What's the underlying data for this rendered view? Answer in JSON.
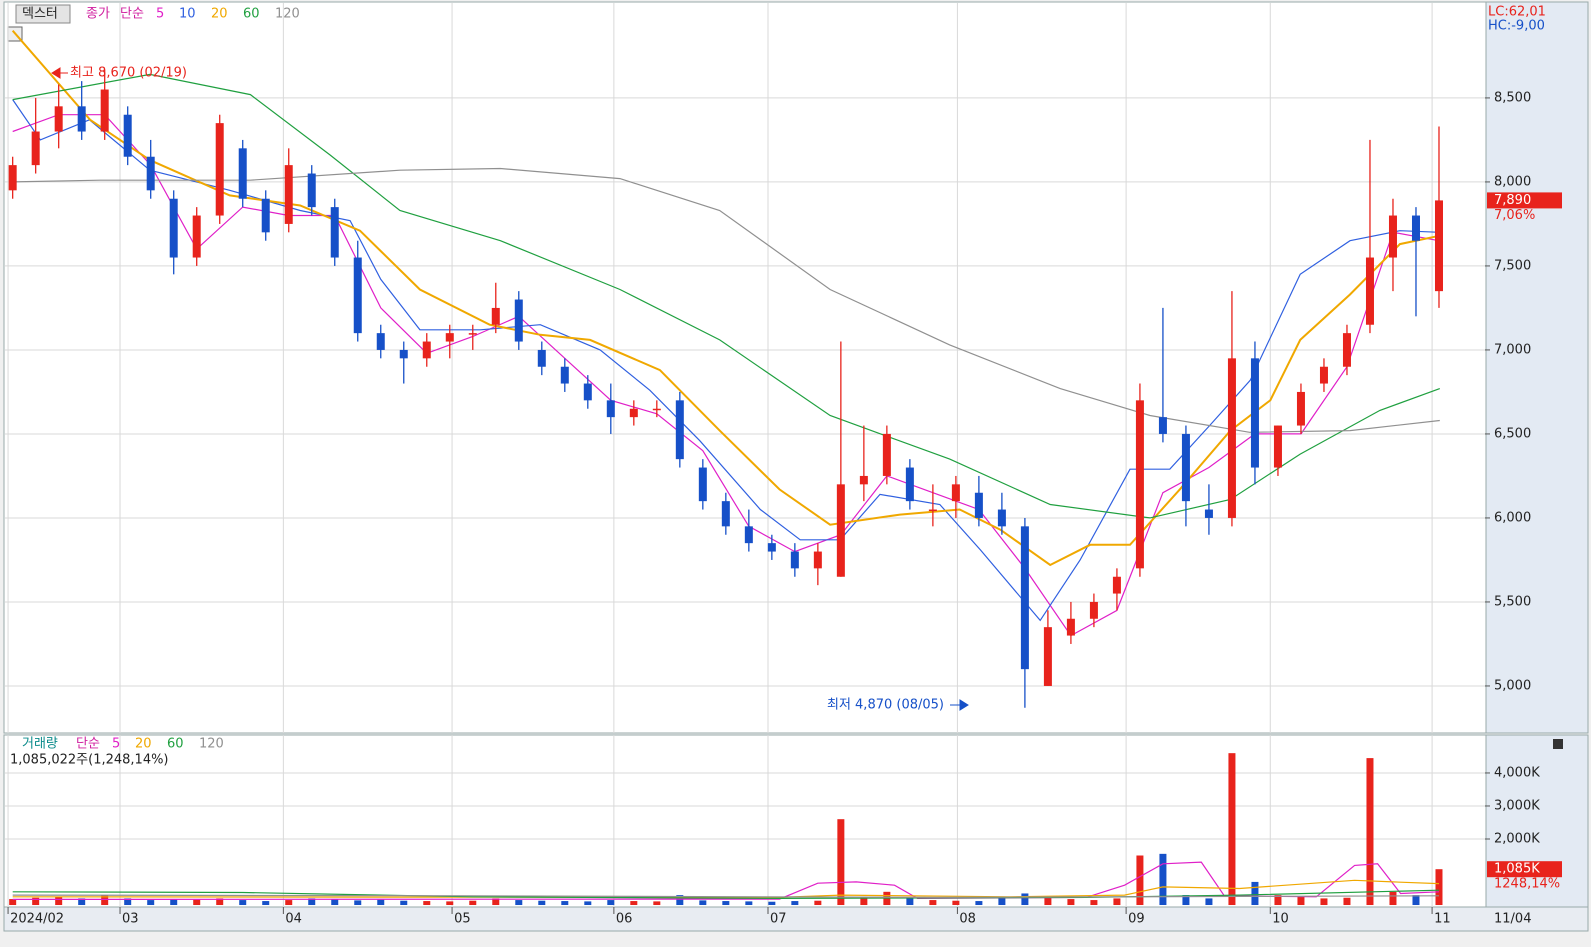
{
  "chart_data": [
    {
      "type": "candlestick",
      "title": "덱스터",
      "price_label": "종가",
      "ma_label": "단순",
      "corner_labels": [
        "LC:62,01",
        "HC:-9,00"
      ],
      "annotations": [
        "최고 8,670 (02/19)",
        "최저 4,870 (08/05)"
      ],
      "last_price_label": "7,890",
      "change_label": "7,06%",
      "xlim": [
        -1,
        192
      ],
      "ylim": [
        4720,
        9065
      ],
      "yticks": [
        {
          "value": 5000,
          "label": "5,000"
        },
        {
          "value": 5500,
          "label": "5,500"
        },
        {
          "value": 6000,
          "label": "6,000"
        },
        {
          "value": 6500,
          "label": "6,500"
        },
        {
          "value": 7000,
          "label": "7,000"
        },
        {
          "value": 7500,
          "label": "7,500"
        },
        {
          "value": 8000,
          "label": "8,000"
        },
        {
          "value": 8500,
          "label": "8,500"
        }
      ],
      "grid": true,
      "up_color": "#e8231c",
      "down_color": "#1650c8",
      "x": [
        0,
        3,
        6,
        9,
        12,
        15,
        18,
        21,
        24,
        27,
        30,
        33,
        36,
        39,
        42,
        45,
        48,
        51,
        54,
        57,
        60,
        63,
        66,
        69,
        72,
        75,
        78,
        81,
        84,
        87,
        90,
        93,
        96,
        99,
        102,
        105,
        108,
        111,
        114,
        117,
        120,
        123,
        126,
        129,
        132,
        135,
        138,
        141,
        144,
        147,
        150,
        153,
        156,
        159,
        162,
        165,
        168,
        171,
        174,
        177,
        180,
        183,
        186
      ],
      "open": [
        7950,
        8100,
        8300,
        8450,
        8300,
        8400,
        8150,
        7900,
        7550,
        7800,
        8200,
        7900,
        7750,
        8050,
        7850,
        7550,
        7100,
        7000,
        6950,
        7050,
        7100,
        7150,
        7300,
        7000,
        6900,
        6800,
        6700,
        6600,
        6650,
        6700,
        6300,
        6100,
        5950,
        5850,
        5800,
        5700,
        5650,
        6200,
        6250,
        6300,
        6050,
        6100,
        6150,
        6050,
        5950,
        5000,
        5300,
        5400,
        5550,
        5700,
        6600,
        6500,
        6050,
        6000,
        6950,
        6300,
        6550,
        6800,
        6900,
        7150,
        7550,
        7800,
        7350
      ],
      "high": [
        8150,
        8500,
        8580,
        8600,
        8670,
        8450,
        8250,
        7950,
        7850,
        8400,
        8250,
        7950,
        8200,
        8100,
        7900,
        7650,
        7150,
        7050,
        7100,
        7150,
        7150,
        7400,
        7350,
        7050,
        6950,
        6850,
        6800,
        6700,
        6700,
        6750,
        6350,
        6150,
        6050,
        5900,
        5850,
        5850,
        7050,
        6550,
        6550,
        6350,
        6200,
        6250,
        6250,
        6150,
        6000,
        5450,
        5500,
        5550,
        5700,
        6800,
        7250,
        6550,
        6200,
        7350,
        7050,
        6550,
        6800,
        6950,
        7150,
        8250,
        7900,
        7850,
        8330
      ],
      "low": [
        7900,
        8050,
        8200,
        8250,
        8250,
        8100,
        7900,
        7450,
        7500,
        7750,
        7850,
        7650,
        7700,
        7800,
        7500,
        7050,
        6950,
        6800,
        6900,
        6950,
        7000,
        7100,
        7000,
        6850,
        6750,
        6650,
        6500,
        6550,
        6600,
        6300,
        6050,
        5900,
        5800,
        5750,
        5650,
        5600,
        5650,
        6100,
        6200,
        6050,
        5950,
        6000,
        5950,
        5900,
        4870,
        5000,
        5250,
        5350,
        5450,
        5650,
        6450,
        5950,
        5900,
        5950,
        6200,
        6250,
        6500,
        6750,
        6850,
        7100,
        7350,
        7200,
        7250
      ],
      "close": [
        8100,
        8300,
        8450,
        8300,
        8550,
        8150,
        7950,
        7550,
        7800,
        8350,
        7900,
        7700,
        8100,
        7850,
        7550,
        7100,
        7000,
        6950,
        7050,
        7100,
        7100,
        7250,
        7050,
        6900,
        6800,
        6700,
        6600,
        6650,
        6650,
        6350,
        6100,
        5950,
        5850,
        5800,
        5700,
        5800,
        6200,
        6250,
        6500,
        6100,
        6050,
        6200,
        6000,
        5950,
        5100,
        5350,
        5400,
        5500,
        5650,
        6700,
        6500,
        6100,
        6000,
        6950,
        6300,
        6550,
        6750,
        6900,
        7100,
        7550,
        7800,
        7650,
        7890
      ],
      "series": [
        {
          "name": "5",
          "color": "#e020c8",
          "x": [
            0,
            6,
            12,
            18,
            24,
            30,
            36,
            42,
            48,
            54,
            60,
            66,
            72,
            78,
            84,
            90,
            96,
            102,
            108,
            114,
            120,
            126,
            132,
            138,
            144,
            150,
            156,
            162,
            168,
            174,
            180,
            186
          ],
          "values": [
            8300,
            8400,
            8400,
            8100,
            7600,
            7850,
            7800,
            7800,
            7250,
            6980,
            7080,
            7200,
            6950,
            6700,
            6620,
            6400,
            5950,
            5800,
            5900,
            6250,
            6150,
            6050,
            5700,
            5300,
            5450,
            6150,
            6300,
            6500,
            6500,
            6900,
            7700,
            7650
          ]
        },
        {
          "name": "10",
          "color": "#3060e0",
          "x": [
            0,
            3.6,
            10,
            17.9,
            28.3,
            37.5,
            44,
            48,
            53.1,
            61,
            68.8,
            76.6,
            83.1,
            89.6,
            97.5,
            102.7,
            107.9,
            113.1,
            120.9,
            126.2,
            134,
            139.2,
            145.7,
            150.9,
            156.1,
            161.4,
            167.9,
            174.4,
            180.9,
            186.1
          ],
          "values": [
            8490,
            8250,
            8370,
            8070,
            7950,
            7830,
            7770,
            7420,
            7120,
            7120,
            7150,
            7000,
            6760,
            6460,
            6050,
            5870,
            5870,
            6140,
            6080,
            5810,
            5390,
            5750,
            6290,
            6290,
            6550,
            6820,
            7450,
            7650,
            7710,
            7700
          ]
        },
        {
          "name": "20",
          "color": "#f0a800",
          "x": [
            0,
            10.1,
            17.9,
            28.3,
            37.5,
            45.3,
            53.1,
            62.2,
            68.8,
            75.3,
            84.4,
            92.2,
            100,
            106.6,
            115.7,
            123.5,
            128.8,
            135.3,
            140.5,
            145.7,
            152.2,
            158.8,
            164,
            167.9,
            174.4,
            180.9,
            186.1
          ],
          "values": [
            8900,
            8370,
            8130,
            7920,
            7860,
            7710,
            7360,
            7150,
            7090,
            7060,
            6880,
            6520,
            6170,
            5960,
            6020,
            6050,
            5930,
            5720,
            5840,
            5840,
            6170,
            6520,
            6700,
            7060,
            7330,
            7630,
            7680
          ]
        },
        {
          "name": "60",
          "color": "#20a040",
          "x": [
            0,
            17.9,
            31,
            41.4,
            50.5,
            63.6,
            79.2,
            92.2,
            106.6,
            122.2,
            135.3,
            148.3,
            158.8,
            167.9,
            178.3,
            186.1
          ],
          "values": [
            8490,
            8640,
            8520,
            8160,
            7830,
            7650,
            7360,
            7060,
            6610,
            6350,
            6080,
            6000,
            6110,
            6380,
            6640,
            6770
          ]
        },
        {
          "name": "120",
          "color": "#909090",
          "x": [
            0,
            11.4,
            31,
            50.5,
            63.6,
            79.2,
            92.2,
            106.6,
            122.2,
            136.6,
            148.3,
            161.3,
            174.4,
            186.1
          ],
          "values": [
            8000,
            8010,
            8010,
            8070,
            8080,
            8020,
            7830,
            7360,
            7030,
            6770,
            6610,
            6510,
            6520,
            6580
          ]
        }
      ]
    },
    {
      "type": "bar",
      "title": "거래량",
      "ma_label": "단순",
      "summary": "1,085,022주(1,248,14%)",
      "last_label": "1,085K",
      "change_label": "1248,14%",
      "last_axis_label": "11/04",
      "xlim": [
        -1,
        192
      ],
      "ylim": [
        -60,
        5150
      ],
      "yticks": [
        {
          "value": 2000,
          "label": "2,000K"
        },
        {
          "value": 3000,
          "label": "3,000K"
        },
        {
          "value": 4000,
          "label": "4,000K"
        }
      ],
      "xticks": [
        {
          "value": -0.6,
          "label": "2024/02"
        },
        {
          "value": 14,
          "label": "03"
        },
        {
          "value": 35.3,
          "label": "04"
        },
        {
          "value": 57.3,
          "label": "05"
        },
        {
          "value": 78.4,
          "label": "06"
        },
        {
          "value": 98.5,
          "label": "07"
        },
        {
          "value": 123.2,
          "label": "08"
        },
        {
          "value": 145.2,
          "label": "09"
        },
        {
          "value": 164,
          "label": "10"
        },
        {
          "value": 185.1,
          "label": "11"
        }
      ],
      "grid": true,
      "values": [
        180,
        220,
        250,
        200,
        300,
        200,
        150,
        180,
        160,
        200,
        150,
        120,
        150,
        200,
        170,
        140,
        160,
        130,
        120,
        110,
        130,
        200,
        150,
        130,
        120,
        110,
        150,
        120,
        110,
        300,
        140,
        120,
        110,
        100,
        120,
        130,
        2600,
        250,
        400,
        200,
        150,
        130,
        120,
        200,
        350,
        250,
        180,
        150,
        200,
        1500,
        1550,
        300,
        200,
        4600,
        700,
        300,
        250,
        200,
        220,
        4450,
        400,
        300,
        1085
      ],
      "series": [
        {
          "name": "5",
          "color": "#e020c8",
          "x": [
            0,
            100,
            105,
            110,
            115,
            118,
            140,
            145,
            150,
            155,
            158,
            170,
            175,
            178,
            181,
            186
          ],
          "values": [
            170,
            180,
            660,
            700,
            600,
            200,
            230,
            600,
            1250,
            1300,
            280,
            250,
            1200,
            1250,
            350,
            400
          ]
        },
        {
          "name": "20",
          "color": "#f0a800",
          "x": [
            0,
            100,
            108,
            130,
            145,
            150,
            160,
            175,
            180,
            186
          ],
          "values": [
            250,
            230,
            300,
            250,
            300,
            550,
            500,
            750,
            700,
            650
          ]
        },
        {
          "name": "60",
          "color": "#20a040",
          "x": [
            0,
            30,
            60,
            100,
            140,
            160,
            186
          ],
          "values": [
            400,
            380,
            250,
            200,
            230,
            300,
            450
          ]
        },
        {
          "name": "120",
          "color": "#909090",
          "x": [
            0,
            60,
            120,
            186
          ],
          "values": [
            300,
            280,
            230,
            280
          ]
        }
      ]
    }
  ]
}
